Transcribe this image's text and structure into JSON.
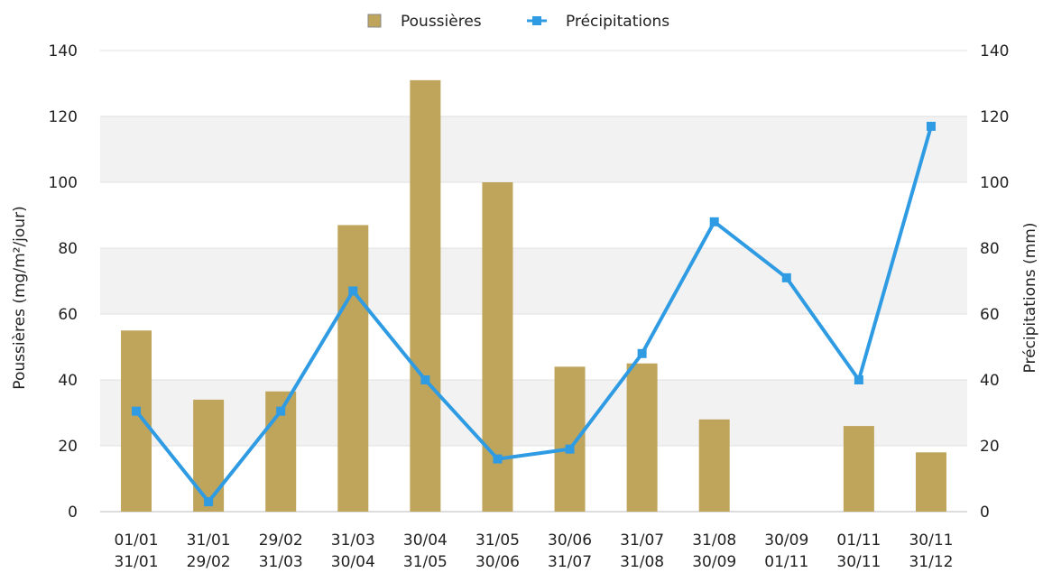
{
  "chart_data": {
    "type": "bar",
    "title": "",
    "categories": [
      [
        "01/01",
        "31/01"
      ],
      [
        "31/01",
        "29/02"
      ],
      [
        "29/02",
        "31/03"
      ],
      [
        "31/03",
        "30/04"
      ],
      [
        "30/04",
        "31/05"
      ],
      [
        "31/05",
        "30/06"
      ],
      [
        "30/06",
        "31/07"
      ],
      [
        "31/07",
        "31/08"
      ],
      [
        "31/08",
        "30/09"
      ],
      [
        "30/09",
        "01/11"
      ],
      [
        "01/11",
        "30/11"
      ],
      [
        "30/11",
        "31/12"
      ]
    ],
    "series": [
      {
        "name": "Poussières",
        "type": "bar",
        "axis": "left",
        "color": "#bfa55b",
        "values": [
          55,
          34,
          36.5,
          87,
          131,
          100,
          44,
          45,
          28,
          null,
          26,
          18
        ]
      },
      {
        "name": "Précipitations",
        "type": "line",
        "axis": "right",
        "color": "#2f9be3",
        "values": [
          30.5,
          3,
          30.5,
          67,
          40,
          16,
          19,
          48,
          88,
          71,
          40,
          117
        ]
      }
    ],
    "ylabel": "Poussières (mg/m²/jour)",
    "y2label": "Précipitations (mm)",
    "ylim": [
      0,
      140
    ],
    "y2lim": [
      0,
      140
    ],
    "yticks": [
      0,
      20,
      40,
      60,
      80,
      100,
      120,
      140
    ],
    "y2ticks": [
      0,
      20,
      40,
      60,
      80,
      100,
      120,
      140
    ],
    "grid": true,
    "grid_bands": "alternating light gray",
    "legend_position": "top-center"
  }
}
